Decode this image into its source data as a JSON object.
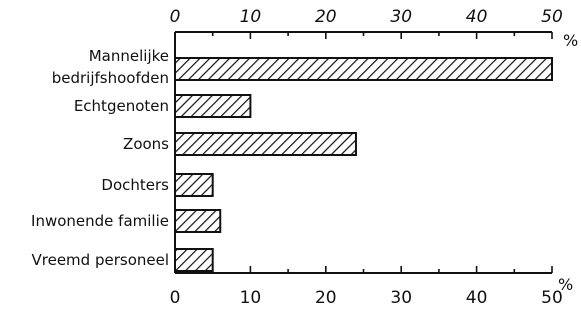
{
  "chart_data": {
    "type": "bar",
    "orientation": "horizontal",
    "title": "",
    "xlabel": "",
    "ylabel": "",
    "unit": "%",
    "xlim": [
      0,
      50
    ],
    "xticks": [
      0,
      10,
      20,
      30,
      40,
      50
    ],
    "grid": false,
    "legend": "none",
    "bar_pattern": "diagonal-hatch",
    "colors": {
      "ink": "#111111",
      "background": "#ffffff"
    },
    "categories": [
      [
        "Mannelijke",
        "bedrijfshoofden"
      ],
      [
        "Echtgenoten"
      ],
      [
        "Zoons"
      ],
      [
        "Dochters"
      ],
      [
        "Inwonende familie"
      ],
      [
        "Vreemd personeel"
      ]
    ],
    "values": [
      50,
      10,
      24,
      5,
      6,
      5
    ]
  }
}
